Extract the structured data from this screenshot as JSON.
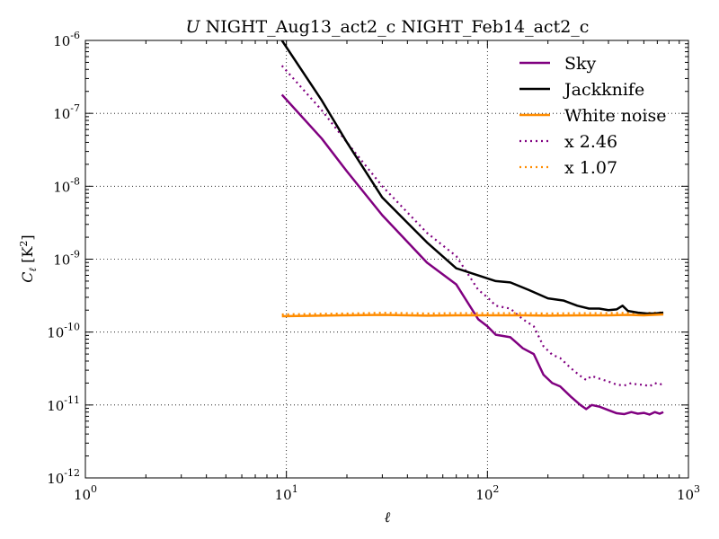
{
  "chart_data": {
    "type": "line",
    "title_italic": "U",
    "title": "NIGHT_Aug13_act2_c NIGHT_Feb14_act2_c",
    "xlabel": "ℓ",
    "ylabel": "C",
    "ylabel_sub": "ℓ",
    "ylabel_unit": "[K",
    "ylabel_unit_sup": "2",
    "ylabel_unit_end": "]",
    "xscale": "log",
    "yscale": "log",
    "xlim": [
      1,
      1000
    ],
    "ylim": [
      1e-12,
      1e-06
    ],
    "x_ticks": [
      {
        "base": "10",
        "exp": "0"
      },
      {
        "base": "10",
        "exp": "1"
      },
      {
        "base": "10",
        "exp": "2"
      },
      {
        "base": "10",
        "exp": "3"
      }
    ],
    "y_ticks": [
      {
        "base": "10",
        "exp": "-12"
      },
      {
        "base": "10",
        "exp": "-11"
      },
      {
        "base": "10",
        "exp": "-10"
      },
      {
        "base": "10",
        "exp": "-9"
      },
      {
        "base": "10",
        "exp": "-8"
      },
      {
        "base": "10",
        "exp": "-7"
      },
      {
        "base": "10",
        "exp": "-6"
      }
    ],
    "grid": true,
    "legend_position": "top-right",
    "series": [
      {
        "name": "Sky",
        "color": "#800080",
        "style": "solid",
        "points": [
          [
            9.5,
            1.8e-07
          ],
          [
            15,
            4.5e-08
          ],
          [
            20,
            1.6e-08
          ],
          [
            30,
            4e-09
          ],
          [
            50,
            9e-10
          ],
          [
            70,
            4.5e-10
          ],
          [
            90,
            1.5e-10
          ],
          [
            100,
            1.2e-10
          ],
          [
            110,
            9.2e-11
          ],
          [
            130,
            8.5e-11
          ],
          [
            150,
            6e-11
          ],
          [
            170,
            5e-11
          ],
          [
            190,
            2.6e-11
          ],
          [
            210,
            2e-11
          ],
          [
            230,
            1.8e-11
          ],
          [
            260,
            1.3e-11
          ],
          [
            290,
            1e-11
          ],
          [
            310,
            8.8e-12
          ],
          [
            330,
            1e-11
          ],
          [
            360,
            9.5e-12
          ],
          [
            400,
            8.5e-12
          ],
          [
            440,
            7.7e-12
          ],
          [
            480,
            7.5e-12
          ],
          [
            520,
            8e-12
          ],
          [
            560,
            7.6e-12
          ],
          [
            600,
            7.8e-12
          ],
          [
            640,
            7.4e-12
          ],
          [
            680,
            8e-12
          ],
          [
            720,
            7.6e-12
          ],
          [
            750,
            8e-12
          ]
        ]
      },
      {
        "name": "Jackknife",
        "color": "#000000",
        "style": "solid",
        "points": [
          [
            9.5,
            1e-06
          ],
          [
            15,
            1.5e-07
          ],
          [
            20,
            4e-08
          ],
          [
            30,
            7e-09
          ],
          [
            50,
            1.7e-09
          ],
          [
            70,
            7.5e-10
          ],
          [
            90,
            6e-10
          ],
          [
            110,
            5e-10
          ],
          [
            130,
            4.8e-10
          ],
          [
            160,
            3.8e-10
          ],
          [
            200,
            2.9e-10
          ],
          [
            240,
            2.7e-10
          ],
          [
            280,
            2.3e-10
          ],
          [
            320,
            2.1e-10
          ],
          [
            360,
            2.1e-10
          ],
          [
            400,
            2e-10
          ],
          [
            440,
            2.05e-10
          ],
          [
            470,
            2.3e-10
          ],
          [
            500,
            1.95e-10
          ],
          [
            560,
            1.85e-10
          ],
          [
            620,
            1.8e-10
          ],
          [
            680,
            1.8e-10
          ],
          [
            750,
            1.85e-10
          ]
        ]
      },
      {
        "name": "White noise",
        "color": "#ff8c00",
        "style": "solid",
        "points": [
          [
            9.5,
            1.65e-10
          ],
          [
            20,
            1.7e-10
          ],
          [
            30,
            1.72e-10
          ],
          [
            50,
            1.68e-10
          ],
          [
            70,
            1.7e-10
          ],
          [
            100,
            1.7e-10
          ],
          [
            150,
            1.7e-10
          ],
          [
            200,
            1.68e-10
          ],
          [
            300,
            1.7e-10
          ],
          [
            400,
            1.7e-10
          ],
          [
            500,
            1.72e-10
          ],
          [
            600,
            1.7e-10
          ],
          [
            750,
            1.75e-10
          ]
        ]
      },
      {
        "name": "x 2.46",
        "color": "#800080",
        "style": "dotted",
        "points": [
          [
            9.5,
            4.5e-07
          ],
          [
            15,
            1.1e-07
          ],
          [
            20,
            4e-08
          ],
          [
            30,
            1e-08
          ],
          [
            50,
            2.3e-09
          ],
          [
            70,
            1.1e-09
          ],
          [
            90,
            3.8e-10
          ],
          [
            100,
            3e-10
          ],
          [
            110,
            2.3e-10
          ],
          [
            130,
            2.1e-10
          ],
          [
            150,
            1.5e-10
          ],
          [
            170,
            1.2e-10
          ],
          [
            190,
            6.4e-11
          ],
          [
            210,
            4.9e-11
          ],
          [
            230,
            4.4e-11
          ],
          [
            260,
            3.2e-11
          ],
          [
            290,
            2.5e-11
          ],
          [
            310,
            2.2e-11
          ],
          [
            330,
            2.5e-11
          ],
          [
            360,
            2.3e-11
          ],
          [
            400,
            2.1e-11
          ],
          [
            440,
            1.9e-11
          ],
          [
            480,
            1.85e-11
          ],
          [
            520,
            2e-11
          ],
          [
            560,
            1.9e-11
          ],
          [
            600,
            1.9e-11
          ],
          [
            640,
            1.8e-11
          ],
          [
            680,
            2e-11
          ],
          [
            720,
            1.9e-11
          ],
          [
            750,
            2e-11
          ]
        ]
      },
      {
        "name": "x 1.07",
        "color": "#ff8c00",
        "style": "dotted",
        "points": [
          [
            9.5,
            1.75e-10
          ],
          [
            20,
            1.8e-10
          ],
          [
            30,
            1.84e-10
          ],
          [
            50,
            1.8e-10
          ],
          [
            70,
            1.82e-10
          ],
          [
            100,
            1.82e-10
          ],
          [
            150,
            1.82e-10
          ],
          [
            200,
            1.8e-10
          ],
          [
            300,
            1.82e-10
          ],
          [
            400,
            1.82e-10
          ],
          [
            500,
            1.84e-10
          ],
          [
            600,
            1.82e-10
          ],
          [
            750,
            1.87e-10
          ]
        ]
      }
    ]
  }
}
